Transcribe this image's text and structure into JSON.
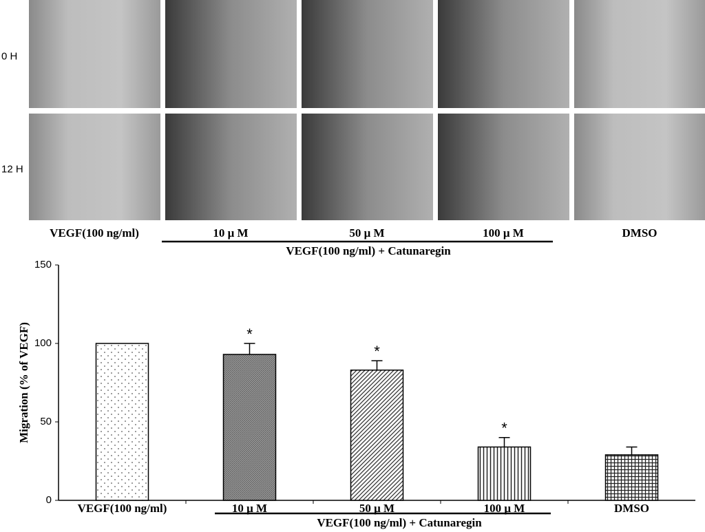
{
  "panel": {
    "row_labels": [
      "0 H",
      "12 H"
    ],
    "column_labels": [
      "VEGF(100 ng/ml)",
      "10 μ M",
      "50 μ M",
      "100 μ M",
      "DMSO"
    ],
    "group_label": "VEGF(100 ng/ml) + Catunaregin"
  },
  "chart_data": {
    "type": "bar",
    "y_label": "Migration (% of VEGF)",
    "categories": [
      "VEGF(100 ng/ml)",
      "10 μ M",
      "50 μ M",
      "100 μ M",
      "DMSO"
    ],
    "group_label": "VEGF(100 ng/ml) + Catunaregin",
    "values": [
      100,
      93,
      83,
      34,
      29
    ],
    "errors": [
      null,
      7,
      6,
      6,
      5
    ],
    "markers": [
      null,
      "*",
      "*",
      "*",
      null
    ],
    "patterns": [
      "dots",
      "dense",
      "diagonal",
      "vertical",
      "grid"
    ],
    "ylim": [
      0,
      150
    ],
    "yticks": [
      0,
      50,
      100,
      150
    ],
    "grid": false
  }
}
